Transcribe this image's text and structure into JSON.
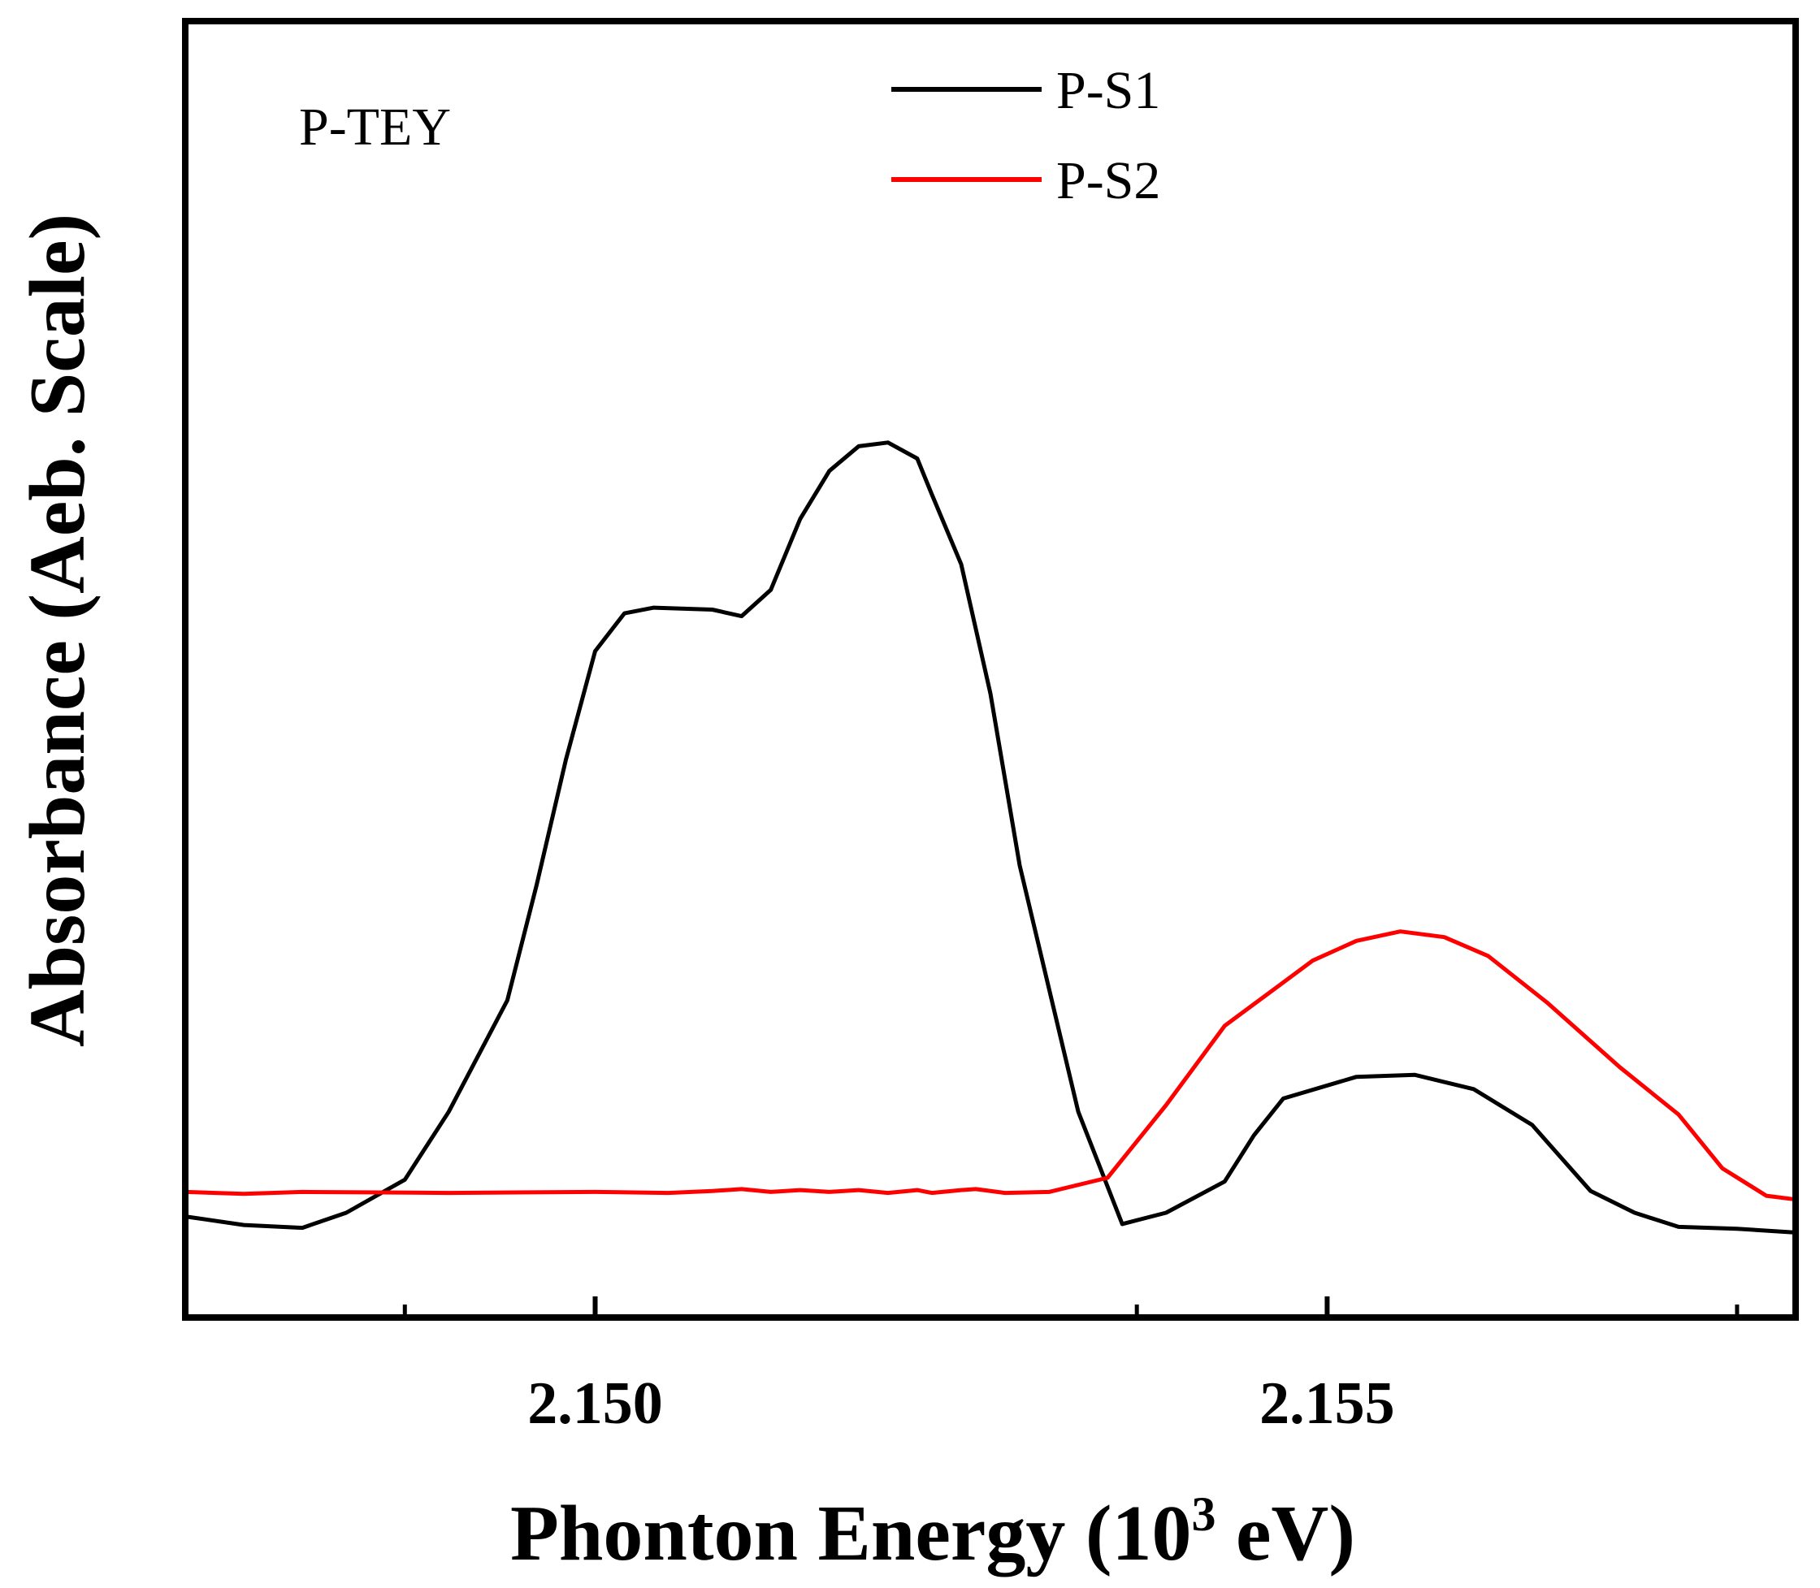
{
  "chart_data": {
    "type": "line",
    "annotation": "P-TEY",
    "xlabel_main": "Phonton Energy (10",
    "xlabel_sup": "3",
    "xlabel_tail": " eV)",
    "ylabel": "Absorbance (Aeb. Scale)",
    "xlim": [
      2.1472,
      2.1582
    ],
    "ylim": [
      0,
      1
    ],
    "x_major_ticks": [
      2.15,
      2.155
    ],
    "x_major_tick_labels": [
      "2.150",
      "2.155"
    ],
    "x_minor_ticks": [
      2.1487,
      2.1537,
      2.1578
    ],
    "grid": false,
    "legend_position": "top-center",
    "series": [
      {
        "name": "P-S1",
        "color": "#000000",
        "x": [
          2.1472,
          2.1476,
          2.148,
          2.1483,
          2.1487,
          2.149,
          2.1494,
          2.1496,
          2.1498,
          2.15,
          2.1502,
          2.1504,
          2.1508,
          2.151,
          2.1512,
          2.1514,
          2.1516,
          2.1518,
          2.152,
          2.1522,
          2.1523,
          2.1525,
          2.1527,
          2.1529,
          2.1533,
          2.1536,
          2.1539,
          2.1543,
          2.1545,
          2.1547,
          2.1552,
          2.1556,
          2.156,
          2.1564,
          2.1568,
          2.1571,
          2.1574,
          2.1578,
          2.1582
        ],
        "values": [
          0.064,
          0.055,
          0.052,
          0.068,
          0.103,
          0.175,
          0.293,
          0.415,
          0.548,
          0.663,
          0.703,
          0.709,
          0.707,
          0.7,
          0.728,
          0.803,
          0.854,
          0.88,
          0.884,
          0.867,
          0.829,
          0.755,
          0.618,
          0.436,
          0.175,
          0.056,
          0.068,
          0.101,
          0.15,
          0.189,
          0.212,
          0.214,
          0.199,
          0.161,
          0.091,
          0.068,
          0.053,
          0.051,
          0.047
        ],
        "note": "values are relative absorbance (arbitrary units), read from plot position"
      },
      {
        "name": "P-S2",
        "color": "#ff0000",
        "x": [
          2.1472,
          2.1476,
          2.148,
          2.149,
          2.15,
          2.1505,
          2.1508,
          2.151,
          2.1512,
          2.1514,
          2.1516,
          2.1518,
          2.152,
          2.1522,
          2.1523,
          2.1525,
          2.1526,
          2.1528,
          2.1531,
          2.1535,
          2.1539,
          2.1543,
          2.1547,
          2.1549,
          2.1552,
          2.1555,
          2.1558,
          2.1561,
          2.1565,
          2.157,
          2.1574,
          2.1577,
          2.158,
          2.1582
        ],
        "values": [
          0.09,
          0.088,
          0.09,
          0.089,
          0.09,
          0.089,
          0.091,
          0.093,
          0.09,
          0.092,
          0.09,
          0.092,
          0.089,
          0.092,
          0.089,
          0.092,
          0.093,
          0.089,
          0.09,
          0.105,
          0.182,
          0.266,
          0.312,
          0.335,
          0.356,
          0.366,
          0.36,
          0.34,
          0.291,
          0.222,
          0.172,
          0.115,
          0.086,
          0.082
        ],
        "note": "values are relative absorbance (arbitrary units), read from plot position"
      }
    ]
  }
}
